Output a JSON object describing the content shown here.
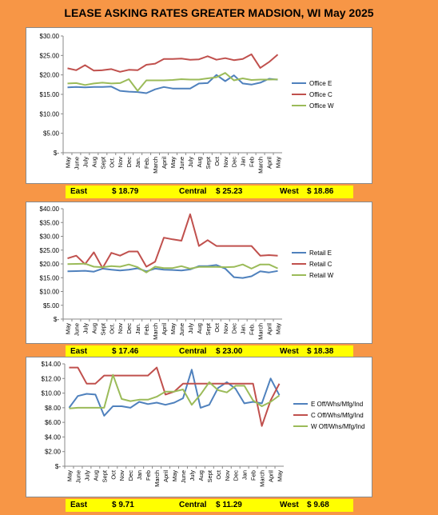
{
  "title": "LEASE ASKING RATES GREATER MADSION, WI  May 2025",
  "chart_data": [
    {
      "type": "line",
      "categories": [
        "May",
        "June",
        "July",
        "Aug",
        "Sept",
        "Oct.",
        "Nov",
        "Dec",
        "Jan.",
        "Feb.",
        "March",
        "April",
        "May",
        "June",
        "July",
        "Aug",
        "Sept",
        "Oct",
        "Nov",
        "Dec",
        "Jan",
        "Feb",
        "March",
        "April",
        "May"
      ],
      "ylim": [
        0,
        30
      ],
      "yticks": [
        "$-",
        "$5.00",
        "$10.00",
        "$15.00",
        "$20.00",
        "$25.00",
        "$30.00"
      ],
      "yticks_values": [
        0,
        5,
        10,
        15,
        20,
        25,
        30
      ],
      "series": [
        {
          "name": "Office E",
          "color": "#4F81BD",
          "values": [
            16.8,
            16.9,
            16.8,
            16.9,
            16.9,
            17.0,
            15.9,
            15.7,
            15.6,
            15.3,
            16.3,
            16.9,
            16.5,
            16.5,
            16.5,
            17.8,
            17.9,
            20.0,
            18.4,
            19.9,
            17.8,
            17.5,
            18.0,
            19.0,
            18.79
          ]
        },
        {
          "name": "Office C",
          "color": "#C0504D",
          "values": [
            21.7,
            21.2,
            22.5,
            21.1,
            21.2,
            21.5,
            20.8,
            21.3,
            21.2,
            22.6,
            22.9,
            24.1,
            24.1,
            24.2,
            23.9,
            24.0,
            24.8,
            23.9,
            24.3,
            23.8,
            24.1,
            25.3,
            21.8,
            23.3,
            25.23
          ]
        },
        {
          "name": "Office W",
          "color": "#9BBB59",
          "values": [
            17.8,
            17.9,
            17.4,
            17.8,
            18.0,
            17.8,
            17.9,
            18.9,
            15.9,
            18.6,
            18.6,
            18.6,
            18.7,
            18.9,
            18.8,
            18.8,
            19.1,
            19.4,
            20.5,
            18.6,
            19.1,
            18.7,
            18.8,
            18.8,
            18.86
          ]
        }
      ],
      "summary": {
        "east_label": "East",
        "east_value": "$   18.79",
        "central_label": "Central",
        "central_value": "$   25.23",
        "west_label": "West",
        "west_value": "$   18.86"
      }
    },
    {
      "type": "line",
      "categories": [
        "May",
        "June",
        "July",
        "Aug",
        "Sept",
        "Oct.",
        "Nov",
        "Dec",
        "Jan.",
        "Feb.",
        "March",
        "April",
        "May",
        "June",
        "July",
        "Aug",
        "Sept",
        "Oct",
        "Nov",
        "Dec",
        "Jan.",
        "Feb.",
        "March",
        "April",
        "May"
      ],
      "ylim": [
        0,
        40
      ],
      "yticks": [
        "$-",
        "$5.00",
        "$10.00",
        "$15.00",
        "$20.00",
        "$25.00",
        "$30.00",
        "$35.00",
        "$40.00"
      ],
      "yticks_values": [
        0,
        5,
        10,
        15,
        20,
        25,
        30,
        35,
        40
      ],
      "series": [
        {
          "name": "Retail E",
          "color": "#4F81BD",
          "values": [
            17.3,
            17.4,
            17.5,
            17.2,
            18.3,
            17.9,
            17.6,
            17.9,
            18.4,
            17.3,
            18.3,
            17.9,
            17.8,
            17.6,
            18.0,
            19.2,
            19.2,
            19.6,
            18.3,
            15.2,
            14.9,
            15.5,
            17.3,
            16.9,
            17.46
          ]
        },
        {
          "name": "Retail C",
          "color": "#C0504D",
          "values": [
            22.0,
            23.0,
            19.9,
            24.2,
            18.5,
            24.0,
            23.0,
            24.5,
            24.5,
            19.0,
            20.8,
            29.5,
            28.9,
            28.4,
            38.0,
            26.5,
            28.6,
            26.5,
            26.5,
            26.5,
            26.5,
            26.5,
            23.0,
            23.2,
            23.0
          ]
        },
        {
          "name": "Retail W",
          "color": "#9BBB59",
          "values": [
            19.9,
            20.0,
            20.1,
            19.0,
            18.8,
            19.2,
            19.0,
            19.8,
            18.8,
            16.9,
            19.0,
            18.5,
            18.5,
            19.2,
            18.3,
            18.9,
            18.9,
            18.9,
            18.8,
            18.9,
            19.8,
            18.3,
            19.8,
            19.8,
            18.38
          ]
        }
      ],
      "summary": {
        "east_label": "East",
        "east_value": "$   17.46",
        "central_label": "Central",
        "central_value": "$   23.00",
        "west_label": "West",
        "west_value": "$   18.38"
      }
    },
    {
      "type": "line",
      "categories": [
        "May",
        "June",
        "July",
        "Aug",
        "Sept",
        "Oct",
        "Nov",
        "Dec",
        "Jan",
        "Feb",
        "March",
        "April",
        "May",
        "June",
        "July",
        "Aug",
        "Sept",
        "Oct",
        "Nov",
        "Dec",
        "Jan",
        "Feb",
        "March",
        "April",
        "May"
      ],
      "ylim": [
        0,
        14
      ],
      "yticks": [
        "$-",
        "$2.00",
        "$4.00",
        "$6.00",
        "$8.00",
        "$10.00",
        "$12.00",
        "$14.00"
      ],
      "yticks_values": [
        0,
        2,
        4,
        6,
        8,
        10,
        12,
        14
      ],
      "series": [
        {
          "name": "E Off/Whs/Mfg/Ind",
          "color": "#4F81BD",
          "values": [
            8.0,
            9.6,
            9.9,
            9.8,
            6.9,
            8.2,
            8.2,
            8.0,
            8.8,
            8.5,
            8.7,
            8.4,
            8.7,
            9.3,
            13.2,
            8.0,
            8.4,
            10.7,
            11.5,
            10.6,
            8.6,
            8.8,
            8.6,
            12.0,
            9.71
          ]
        },
        {
          "name": "C Off/Whs/Mfg/Ind",
          "color": "#C0504D",
          "values": [
            13.5,
            13.5,
            11.3,
            11.3,
            12.4,
            12.4,
            12.4,
            12.4,
            12.4,
            12.4,
            13.5,
            9.8,
            10.2,
            11.3,
            11.3,
            11.3,
            11.3,
            11.3,
            11.3,
            11.3,
            11.3,
            11.3,
            5.5,
            9.0,
            11.29
          ]
        },
        {
          "name": "W Off/Whs/Mfg/Ind",
          "color": "#9BBB59",
          "values": [
            7.9,
            8.0,
            8.0,
            8.0,
            8.0,
            12.5,
            9.2,
            8.9,
            9.1,
            9.1,
            9.5,
            10.2,
            10.2,
            10.5,
            8.4,
            9.8,
            11.5,
            10.4,
            10.1,
            11.0,
            11.0,
            9.0,
            8.2,
            8.8,
            9.68
          ]
        }
      ],
      "summary": {
        "east_label": "East",
        "east_value": "$   9.71",
        "central_label": "Central",
        "central_value": "$   11.29",
        "west_label": "West",
        "west_value": "$   9.68"
      }
    }
  ]
}
